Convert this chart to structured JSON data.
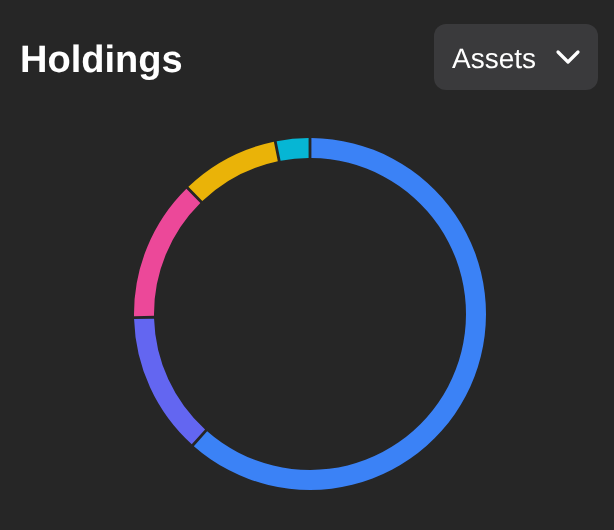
{
  "chart_data": {
    "type": "donut",
    "title": "Holdings",
    "annotations": [
      "Assets"
    ],
    "categories": [
      null,
      null,
      null,
      null,
      null
    ],
    "values": [
      62,
      13,
      13,
      9,
      3
    ],
    "colors": [
      "#3b82f6",
      "#6366f1",
      "#ec4899",
      "#eab308",
      "#06b6d4"
    ]
  }
}
